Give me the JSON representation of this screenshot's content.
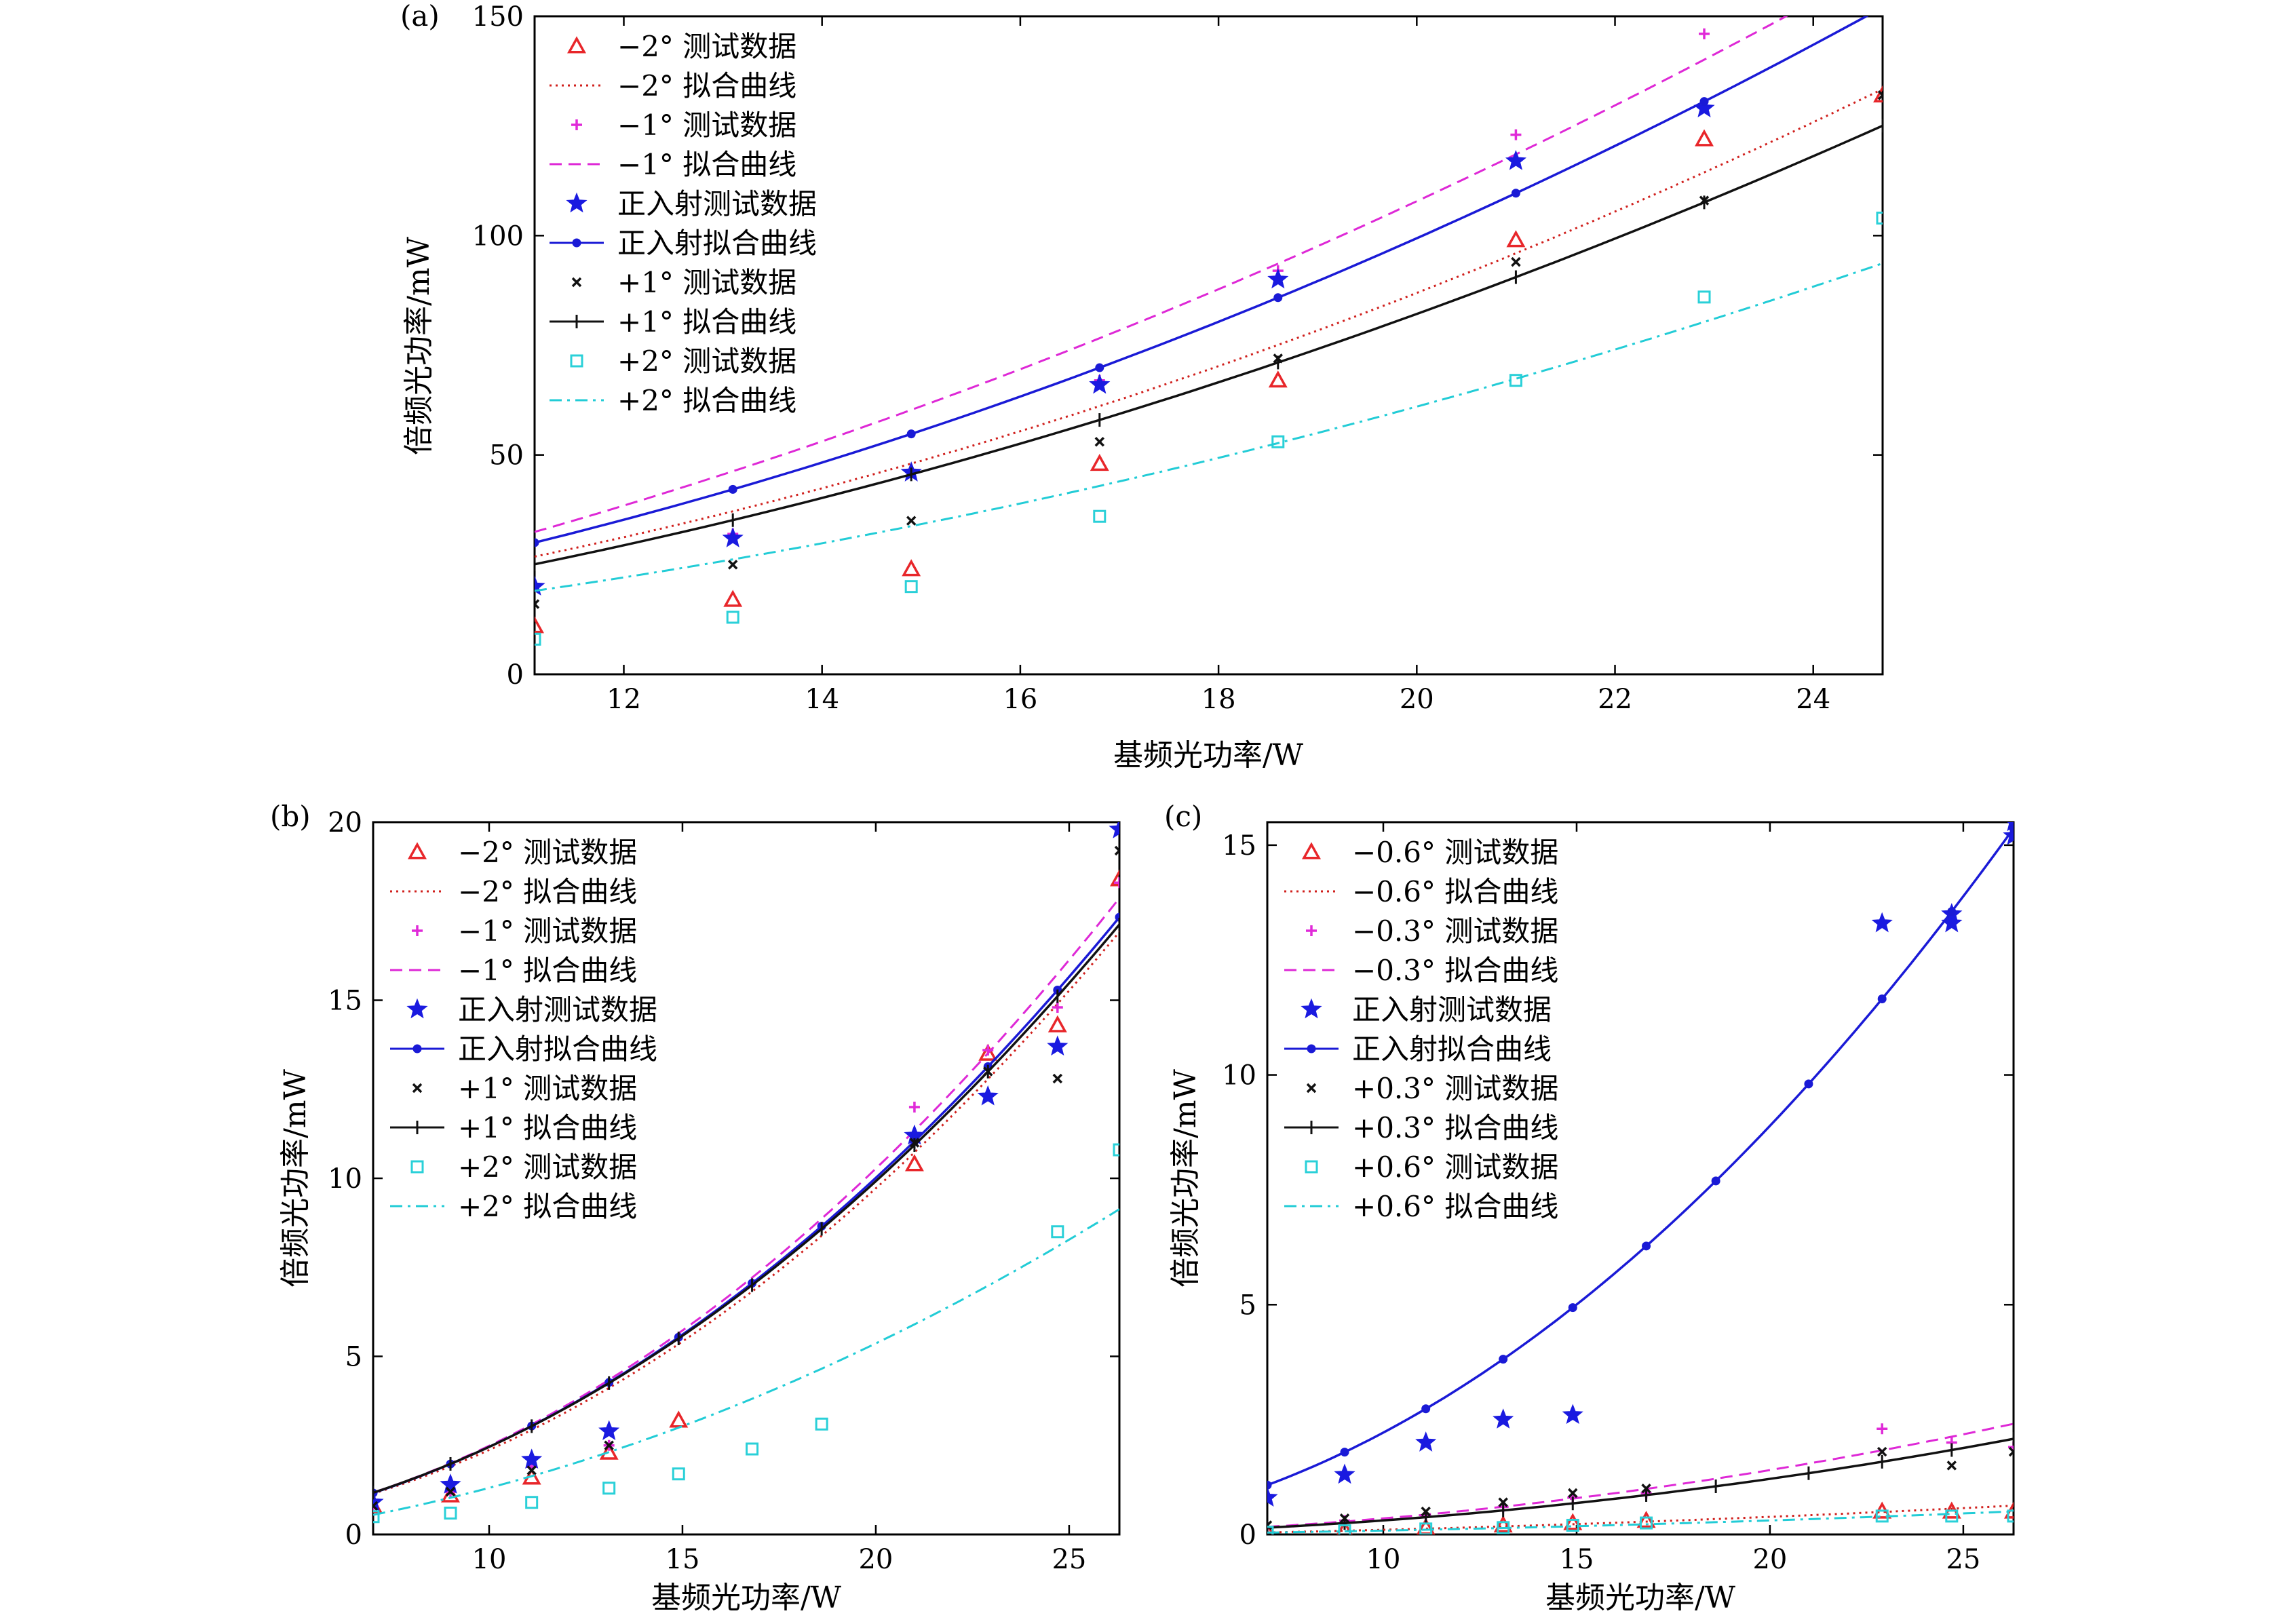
{
  "figure": {
    "axis_labels": {
      "x": "基频光功率/W",
      "y": "倍频光功率/mW"
    }
  },
  "chart_data": [
    {
      "id": "a",
      "panel_label": "(a)",
      "type": "line",
      "xlabel": "基频光功率/W",
      "ylabel": "倍频光功率/mW",
      "xlim": [
        11.1,
        24.7
      ],
      "ylim": [
        0,
        150
      ],
      "xticks": [
        12,
        14,
        16,
        18,
        20,
        22,
        24
      ],
      "yticks": [
        0,
        50,
        100,
        150
      ],
      "fit_curve": "quadratic",
      "legend_position": "top-left",
      "series": [
        {
          "name": "−2° 测试数据",
          "kind": "scatter",
          "marker": "triangle",
          "color": "#e8262a",
          "x": [
            11.1,
            13.1,
            14.9,
            16.8,
            18.6,
            21.0,
            22.9,
            24.7
          ],
          "y": [
            11,
            17,
            24,
            48,
            67,
            99,
            122,
            132
          ]
        },
        {
          "name": "−2° 拟合曲线",
          "kind": "line",
          "dash": "dot",
          "color": "#d0201d",
          "x": [
            11.1,
            13.1,
            14.9,
            16.8,
            18.6,
            21.0,
            22.9,
            24.7
          ],
          "y": [
            27,
            37,
            48,
            61,
            75,
            96,
            115,
            133
          ]
        },
        {
          "name": "−1° 测试数据",
          "kind": "scatter",
          "marker": "plus",
          "color": "#e02ad8",
          "x": [
            11.1,
            13.1,
            14.9,
            16.8,
            18.6,
            21.0,
            22.9
          ],
          "y": [
            20,
            32,
            46,
            67,
            92,
            123,
            146
          ]
        },
        {
          "name": "−1° 拟合曲线",
          "kind": "line",
          "dash": "dash",
          "color": "#de28d6",
          "x": [
            11.1,
            13.1,
            14.9,
            16.8,
            18.6,
            21.0,
            22.9,
            23.9
          ],
          "y": [
            33,
            46,
            60,
            76,
            93,
            120,
            142,
            150
          ]
        },
        {
          "name": "正入射测试数据",
          "kind": "scatter",
          "marker": "star",
          "color": "#1a1ae0",
          "x": [
            11.1,
            13.1,
            14.9,
            16.8,
            18.6,
            21.0,
            22.9
          ],
          "y": [
            20,
            31,
            46,
            66,
            90,
            117,
            129
          ]
        },
        {
          "name": "正入射拟合曲线",
          "kind": "line",
          "dash": "solid",
          "marker": "dot",
          "color": "#1a1ad6",
          "x": [
            11.1,
            13.1,
            14.9,
            16.8,
            18.6,
            21.0,
            22.9,
            24.7
          ],
          "y": [
            30,
            42,
            55,
            70,
            86,
            109,
            131,
            152
          ]
        },
        {
          "name": "+1° 测试数据",
          "kind": "scatter",
          "marker": "x",
          "color": "#111111",
          "x": [
            11.1,
            13.1,
            14.9,
            16.8,
            18.6,
            21.0,
            22.9,
            24.7
          ],
          "y": [
            16,
            25,
            35,
            53,
            72,
            94,
            108,
            132
          ]
        },
        {
          "name": "+1° 拟合曲线",
          "kind": "line",
          "dash": "solid",
          "marker": "tick",
          "color": "#111111",
          "x": [
            11.1,
            13.1,
            14.9,
            16.8,
            18.6,
            21.0,
            22.9,
            24.7
          ],
          "y": [
            25,
            35,
            46,
            58,
            71,
            90,
            108,
            125
          ]
        },
        {
          "name": "+2° 测试数据",
          "kind": "scatter",
          "marker": "square",
          "color": "#2ad0d8",
          "x": [
            11.1,
            13.1,
            14.9,
            16.8,
            18.6,
            21.0,
            22.9,
            24.7
          ],
          "y": [
            8,
            13,
            20,
            36,
            53,
            67,
            86,
            104
          ]
        },
        {
          "name": "+2° 拟合曲线",
          "kind": "line",
          "dash": "dashdot",
          "color": "#22ccd6",
          "x": [
            11.1,
            13.1,
            14.9,
            16.8,
            18.6,
            21.0,
            22.9,
            24.7
          ],
          "y": [
            19,
            26,
            34,
            43,
            53,
            67,
            80,
            94
          ]
        }
      ]
    },
    {
      "id": "b",
      "panel_label": "(b)",
      "type": "line",
      "xlabel": "基频光功率/W",
      "ylabel": "倍频光功率/mW",
      "xlim": [
        7,
        26.3
      ],
      "ylim": [
        0,
        20
      ],
      "xticks": [
        10,
        15,
        20,
        25
      ],
      "yticks": [
        0,
        5,
        10,
        15,
        20
      ],
      "fit_curve": "quadratic",
      "legend_position": "top-left",
      "series": [
        {
          "name": "−2° 测试数据",
          "kind": "scatter",
          "marker": "triangle",
          "color": "#e8262a",
          "x": [
            7,
            9,
            11.1,
            13.1,
            14.9,
            21.0,
            22.9,
            24.7,
            26.3
          ],
          "y": [
            0.8,
            1.1,
            1.6,
            2.3,
            3.2,
            10.4,
            13.5,
            14.3,
            18.4
          ]
        },
        {
          "name": "−2° 拟合曲线",
          "kind": "line",
          "dash": "dot",
          "color": "#d0201d",
          "x": [
            7,
            9,
            11.1,
            13.1,
            14.9,
            16.8,
            18.6,
            21.0,
            22.9,
            24.7,
            26.3
          ],
          "y": [
            1.2,
            1.9,
            2.9,
            4.1,
            5.3,
            6.8,
            8.4,
            10.8,
            12.8,
            15.0,
            16.8
          ]
        },
        {
          "name": "−1° 测试数据",
          "kind": "scatter",
          "marker": "plus",
          "color": "#e02ad8",
          "x": [
            7,
            9,
            11.1,
            13.1,
            21.0,
            22.9,
            24.7,
            26.3
          ],
          "y": [
            0.8,
            1.2,
            1.9,
            2.5,
            12.0,
            13.6,
            14.8,
            18.3
          ]
        },
        {
          "name": "−1° 拟合曲线",
          "kind": "line",
          "dash": "dash",
          "color": "#de28d6",
          "x": [
            7,
            9,
            11.1,
            13.1,
            14.9,
            16.8,
            18.6,
            21.0,
            22.9,
            24.7,
            26.3
          ],
          "y": [
            1.2,
            2.0,
            3.1,
            4.3,
            5.6,
            7.2,
            8.9,
            11.4,
            13.5,
            15.8,
            17.8
          ]
        },
        {
          "name": "正入射测试数据",
          "kind": "scatter",
          "marker": "star",
          "color": "#1a1ae0",
          "x": [
            7,
            9,
            11.1,
            13.1,
            21.0,
            22.9,
            24.7,
            26.3
          ],
          "y": [
            0.9,
            1.4,
            2.1,
            2.9,
            11.2,
            12.3,
            13.7,
            19.8
          ]
        },
        {
          "name": "正入射拟合曲线",
          "kind": "line",
          "dash": "solid",
          "marker": "dot",
          "color": "#1a1ad6",
          "x": [
            7,
            9,
            11.1,
            13.1,
            14.9,
            16.8,
            18.6,
            21.0,
            22.9,
            24.7,
            26.3
          ],
          "y": [
            1.2,
            2.0,
            3.0,
            4.2,
            5.5,
            7.1,
            8.7,
            11.1,
            13.1,
            15.3,
            17.3
          ]
        },
        {
          "name": "+1° 测试数据",
          "kind": "scatter",
          "marker": "x",
          "color": "#111111",
          "x": [
            7,
            9,
            11.1,
            13.1,
            21.0,
            22.9,
            24.7,
            26.3
          ],
          "y": [
            0.8,
            1.2,
            1.8,
            2.5,
            11.0,
            13.0,
            12.8,
            19.2
          ]
        },
        {
          "name": "+1° 拟合曲线",
          "kind": "line",
          "dash": "solid",
          "marker": "tick",
          "color": "#111111",
          "x": [
            7,
            9,
            11.1,
            13.1,
            14.9,
            16.8,
            18.6,
            21.0,
            22.9,
            24.7,
            26.3
          ],
          "y": [
            1.2,
            2.0,
            3.0,
            4.2,
            5.5,
            7.0,
            8.6,
            11.0,
            13.0,
            15.1,
            17.1
          ]
        },
        {
          "name": "+2° 测试数据",
          "kind": "scatter",
          "marker": "square",
          "color": "#2ad0d8",
          "x": [
            7,
            9,
            11.1,
            13.1,
            14.9,
            16.8,
            18.6,
            24.7,
            26.3
          ],
          "y": [
            0.5,
            0.6,
            0.9,
            1.3,
            1.7,
            2.4,
            3.1,
            8.5,
            10.8
          ]
        },
        {
          "name": "+2° 拟合曲线",
          "kind": "line",
          "dash": "dashdot",
          "color": "#22ccd6",
          "x": [
            7,
            9,
            11.1,
            13.1,
            14.9,
            16.8,
            18.6,
            21.0,
            22.9,
            24.7,
            26.3
          ],
          "y": [
            0.6,
            1.0,
            1.6,
            2.3,
            3.0,
            3.8,
            4.7,
            5.9,
            7.0,
            8.1,
            9.1
          ]
        }
      ]
    },
    {
      "id": "c",
      "panel_label": "(c)",
      "type": "line",
      "xlabel": "基频光功率/W",
      "ylabel": "倍频光功率/mW",
      "xlim": [
        7,
        26.3
      ],
      "ylim": [
        0,
        15.5
      ],
      "xticks": [
        10,
        15,
        20,
        25
      ],
      "yticks": [
        0,
        5,
        10,
        15
      ],
      "fit_curve": "quadratic",
      "legend_position": "top-left",
      "series": [
        {
          "name": "−0.6° 测试数据",
          "kind": "scatter",
          "marker": "triangle",
          "color": "#e8262a",
          "x": [
            7,
            9,
            11.1,
            13.1,
            14.9,
            16.8,
            22.9,
            24.7,
            26.3
          ],
          "y": [
            0.05,
            0.1,
            0.15,
            0.2,
            0.25,
            0.3,
            0.5,
            0.5,
            0.5
          ]
        },
        {
          "name": "−0.6° 拟合曲线",
          "kind": "line",
          "dash": "dot",
          "color": "#d0201d",
          "x": [
            7,
            9,
            11.1,
            13.1,
            14.9,
            16.8,
            18.6,
            21.0,
            22.9,
            24.7,
            26.3
          ],
          "y": [
            0.05,
            0.08,
            0.12,
            0.17,
            0.22,
            0.28,
            0.34,
            0.42,
            0.5,
            0.56,
            0.62
          ]
        },
        {
          "name": "−0.3° 测试数据",
          "kind": "scatter",
          "marker": "plus",
          "color": "#e02ad8",
          "x": [
            7,
            9,
            11.1,
            13.1,
            14.9,
            16.8,
            22.9,
            24.7,
            26.3
          ],
          "y": [
            0.15,
            0.3,
            0.4,
            0.6,
            0.8,
            0.9,
            2.3,
            2.0,
            1.9
          ]
        },
        {
          "name": "−0.3° 拟合曲线",
          "kind": "line",
          "dash": "dash",
          "color": "#de28d6",
          "x": [
            7,
            9,
            11.1,
            13.1,
            14.9,
            16.8,
            18.6,
            21.0,
            22.9,
            24.7,
            26.3
          ],
          "y": [
            0.17,
            0.28,
            0.43,
            0.6,
            0.78,
            1.0,
            1.2,
            1.55,
            1.84,
            2.13,
            2.4
          ]
        },
        {
          "name": "正入射测试数据",
          "kind": "scatter",
          "marker": "star",
          "color": "#1a1ae0",
          "x": [
            7,
            9,
            11.1,
            13.1,
            14.9,
            22.9,
            24.7,
            24.7,
            26.3,
            26.3
          ],
          "y": [
            0.8,
            1.3,
            2.0,
            2.5,
            2.6,
            13.3,
            13.3,
            13.5,
            15.2,
            15.5
          ]
        },
        {
          "name": "正入射拟合曲线",
          "kind": "line",
          "dash": "solid",
          "marker": "dot",
          "color": "#1a1ad6",
          "x": [
            7,
            9,
            11.1,
            13.1,
            14.9,
            16.8,
            18.6,
            21.0,
            22.9,
            24.7,
            26.3
          ],
          "y": [
            1.1,
            1.8,
            2.7,
            3.8,
            4.9,
            6.3,
            7.7,
            9.8,
            11.7,
            13.6,
            15.3
          ]
        },
        {
          "name": "+0.3° 测试数据",
          "kind": "scatter",
          "marker": "x",
          "color": "#111111",
          "x": [
            7,
            9,
            11.1,
            13.1,
            14.9,
            16.8,
            22.9,
            24.7,
            26.3
          ],
          "y": [
            0.2,
            0.35,
            0.5,
            0.7,
            0.9,
            1.0,
            1.8,
            1.5,
            1.8
          ]
        },
        {
          "name": "+0.3° 拟合曲线",
          "kind": "line",
          "dash": "solid",
          "marker": "tick",
          "color": "#111111",
          "x": [
            7,
            9,
            11.1,
            13.1,
            14.9,
            16.8,
            18.6,
            21.0,
            22.9,
            24.7,
            26.3
          ],
          "y": [
            0.15,
            0.25,
            0.37,
            0.52,
            0.68,
            0.86,
            1.05,
            1.33,
            1.58,
            1.84,
            2.08
          ]
        },
        {
          "name": "+0.6° 测试数据",
          "kind": "scatter",
          "marker": "square",
          "color": "#2ad0d8",
          "x": [
            7,
            9,
            11.1,
            13.1,
            14.9,
            16.8,
            22.9,
            24.7,
            26.3
          ],
          "y": [
            0.05,
            0.08,
            0.12,
            0.15,
            0.2,
            0.25,
            0.4,
            0.4,
            0.4
          ]
        },
        {
          "name": "+0.6° 拟合曲线",
          "kind": "line",
          "dash": "dashdot",
          "color": "#22ccd6",
          "x": [
            7,
            9,
            11.1,
            13.1,
            14.9,
            16.8,
            18.6,
            21.0,
            22.9,
            24.7,
            26.3
          ],
          "y": [
            0.04,
            0.07,
            0.1,
            0.14,
            0.18,
            0.22,
            0.27,
            0.33,
            0.39,
            0.45,
            0.5
          ]
        }
      ]
    }
  ]
}
